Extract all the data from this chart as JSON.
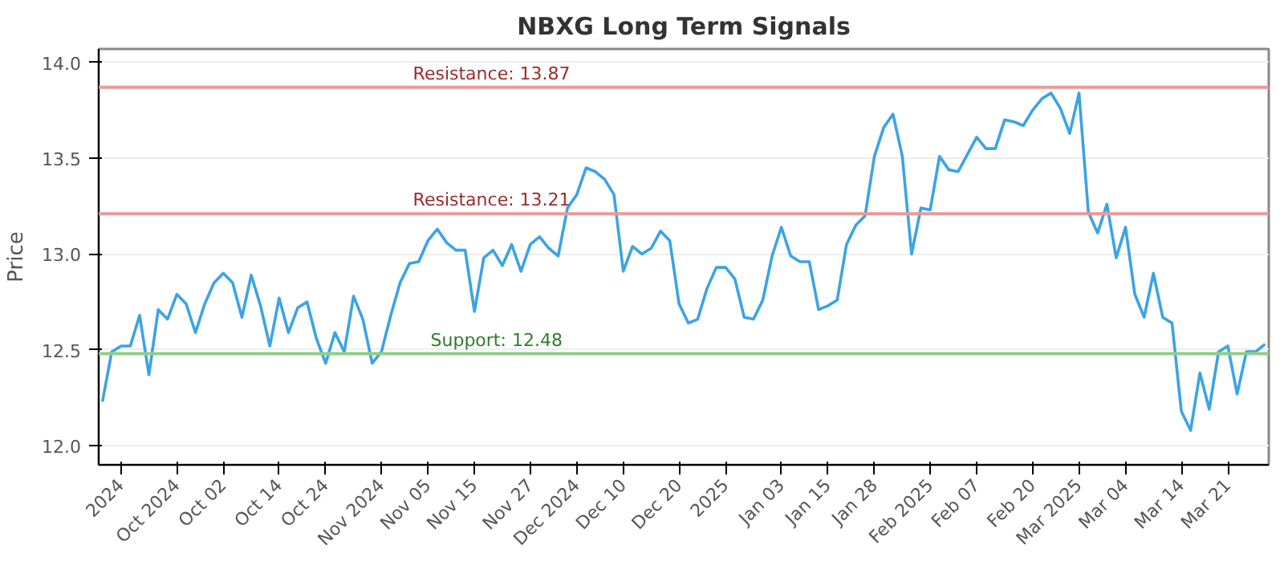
{
  "chart_data": {
    "type": "line",
    "title": "NBXG Long Term Signals",
    "ylabel": "Price",
    "categories": [
      null,
      null,
      "2024",
      null,
      null,
      null,
      null,
      null,
      "Oct 2024",
      null,
      null,
      null,
      null,
      "Oct 02",
      null,
      null,
      null,
      null,
      null,
      "Oct 14",
      null,
      null,
      null,
      null,
      "Oct 24",
      null,
      null,
      null,
      null,
      null,
      "Nov 2024",
      null,
      null,
      null,
      null,
      "Nov 05",
      null,
      null,
      null,
      null,
      "Nov 15",
      null,
      null,
      null,
      null,
      null,
      "Nov 27",
      null,
      null,
      null,
      null,
      "Dec 2024",
      null,
      null,
      null,
      null,
      "Dec 10",
      null,
      null,
      null,
      null,
      null,
      "Dec 20",
      null,
      null,
      null,
      null,
      "2025",
      null,
      null,
      null,
      null,
      null,
      "Jan 03",
      null,
      null,
      null,
      null,
      "Jan 15",
      null,
      null,
      null,
      null,
      "Jan 28",
      null,
      null,
      null,
      null,
      null,
      "Feb 2025",
      null,
      null,
      null,
      null,
      "Feb 07",
      null,
      null,
      null,
      null,
      null,
      "Feb 20",
      null,
      null,
      null,
      null,
      "Mar 2025",
      null,
      null,
      null,
      null,
      "Mar 04",
      null,
      null,
      null,
      null,
      null,
      "Mar 14",
      null,
      null,
      null,
      null,
      "Mar 21",
      null,
      null,
      null,
      null
    ],
    "series": [
      {
        "color": "#3ba3e6",
        "values": [
          12.23,
          12.49,
          12.52,
          12.52,
          12.68,
          12.37,
          12.71,
          12.66,
          12.79,
          12.74,
          12.59,
          12.74,
          12.85,
          12.9,
          12.85,
          12.67,
          12.89,
          12.73,
          12.52,
          12.77,
          12.59,
          12.72,
          12.75,
          12.56,
          12.43,
          12.59,
          12.49,
          12.78,
          12.66,
          12.43,
          12.49,
          12.68,
          12.85,
          12.95,
          12.96,
          13.07,
          13.13,
          13.06,
          13.02,
          13.02,
          12.7,
          12.98,
          13.02,
          12.94,
          13.05,
          12.91,
          13.05,
          13.09,
          13.03,
          12.99,
          13.24,
          13.31,
          13.45,
          13.43,
          13.39,
          13.31,
          12.91,
          13.04,
          13.0,
          13.03,
          13.12,
          13.07,
          12.74,
          12.64,
          12.66,
          12.82,
          12.93,
          12.93,
          12.87,
          12.67,
          12.66,
          12.76,
          12.99,
          13.14,
          12.99,
          12.96,
          12.96,
          12.71,
          12.73,
          12.76,
          13.05,
          13.15,
          13.2,
          13.51,
          13.66,
          13.73,
          13.51,
          13.0,
          13.24,
          13.23,
          13.51,
          13.44,
          13.43,
          13.52,
          13.61,
          13.55,
          13.55,
          13.7,
          13.69,
          13.67,
          13.75,
          13.81,
          13.84,
          13.76,
          13.63,
          13.84,
          13.22,
          13.11,
          13.26,
          12.98,
          13.14,
          12.79,
          12.67,
          12.9,
          12.67,
          12.64,
          12.18,
          12.08,
          12.38,
          12.19,
          12.49,
          12.52,
          12.27,
          12.49,
          12.49,
          12.53
        ]
      }
    ],
    "ylim": [
      11.9,
      14.07
    ],
    "yticks": [
      {
        "value": 12.0,
        "label": "12.0"
      },
      {
        "value": 12.5,
        "label": "12.5"
      },
      {
        "value": 13.0,
        "label": "13.0"
      },
      {
        "value": 13.5,
        "label": "13.5"
      },
      {
        "value": 14.0,
        "label": "14.0"
      }
    ],
    "grid": "y",
    "marker": "none",
    "line_style": "solid",
    "ref_lines": [
      {
        "axis": "y",
        "value": 13.87,
        "label": "Resistance: 13.87",
        "color": "#e89a9a"
      },
      {
        "axis": "y",
        "value": 13.21,
        "label": "Resistance: 13.21",
        "color": "#e89a9a"
      },
      {
        "axis": "y",
        "value": 12.48,
        "label": "Support: 12.48",
        "color": "#8fcf84"
      }
    ]
  }
}
